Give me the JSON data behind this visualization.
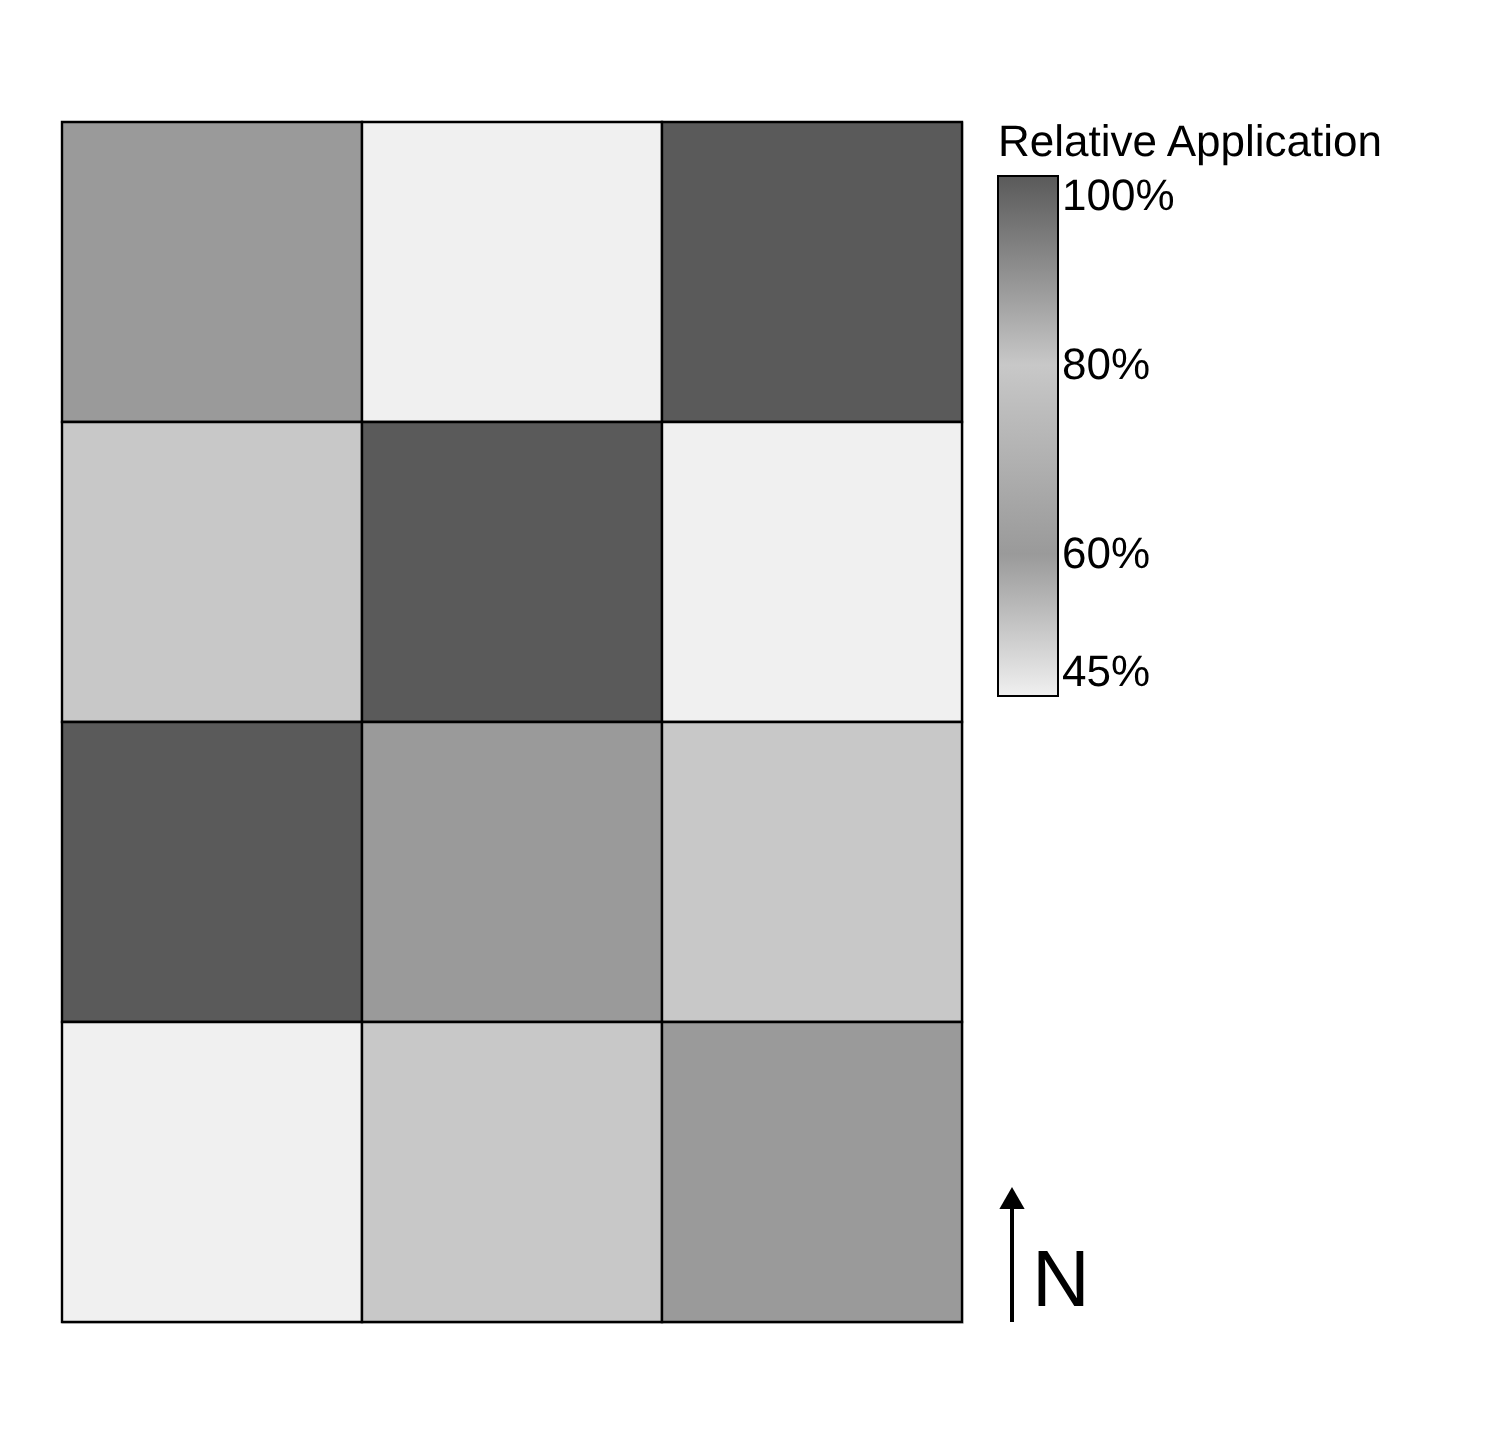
{
  "chart_data": {
    "type": "heatmap",
    "legend_title": "Relative Application",
    "categories": [
      null,
      null,
      null
    ],
    "y_categories": [
      null,
      null,
      null,
      null
    ],
    "cells": [
      [
        60,
        45,
        100
      ],
      [
        80,
        100,
        45
      ],
      [
        100,
        60,
        80
      ],
      [
        45,
        80,
        60
      ]
    ],
    "clim": [
      45,
      100
    ],
    "cticks": [
      {
        "value": 100,
        "label": "100%"
      },
      {
        "value": 80,
        "label": "80%"
      },
      {
        "value": 60,
        "label": "60%"
      },
      {
        "value": 45,
        "label": "45%"
      }
    ],
    "colors": [
      "#5a5a5a",
      "#c8c8c8",
      "#9a9a9a",
      "#f0f0f0"
    ],
    "annotations": [
      {
        "text": "N"
      }
    ]
  }
}
